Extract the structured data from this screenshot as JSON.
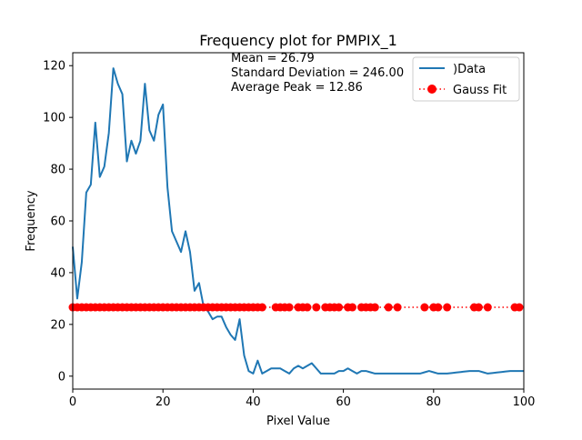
{
  "chart_data": {
    "type": "line",
    "title": "Frequency plot for PMPIX_1",
    "xlabel": "Pixel Value",
    "ylabel": "Frequency",
    "xlim": [
      0,
      100
    ],
    "ylim": [
      -5,
      125
    ],
    "xticks": [
      0,
      20,
      40,
      60,
      80,
      100
    ],
    "yticks": [
      0,
      20,
      40,
      60,
      80,
      100,
      120
    ],
    "grid": false,
    "legend_position": "top-right",
    "annotations": [
      "Mean = 26.79",
      "Standard Deviation = 246.00",
      "Average Peak = 12.86"
    ],
    "series": [
      {
        "name": ")Data",
        "color": "#1f77b4",
        "style": "solid-line",
        "x": [
          0,
          1,
          2,
          3,
          4,
          5,
          6,
          7,
          8,
          9,
          10,
          11,
          12,
          13,
          14,
          15,
          16,
          17,
          18,
          19,
          20,
          21,
          22,
          23,
          24,
          25,
          26,
          27,
          28,
          29,
          30,
          31,
          32,
          33,
          34,
          35,
          36,
          37,
          38,
          39,
          40,
          41,
          42,
          43,
          44,
          45,
          46,
          47,
          48,
          49,
          50,
          51,
          52,
          53,
          54,
          55,
          56,
          57,
          58,
          59,
          60,
          61,
          62,
          63,
          64,
          65,
          66,
          67,
          68,
          69,
          70,
          71,
          72,
          73,
          74,
          75,
          76,
          77,
          78,
          79,
          80,
          81,
          82,
          83,
          84,
          85,
          86,
          87,
          88,
          89,
          90,
          91,
          92,
          93,
          94,
          95,
          96,
          97,
          98,
          99,
          100
        ],
        "y": [
          50,
          30,
          44,
          71,
          74,
          98,
          77,
          81,
          94,
          119,
          113,
          109,
          83,
          91,
          86,
          91,
          113,
          95,
          91,
          101,
          105,
          73,
          56,
          52,
          48,
          56,
          48,
          33,
          36,
          27,
          25,
          22,
          23,
          23,
          19,
          16,
          14,
          22,
          8,
          2,
          1,
          6,
          1,
          2,
          3,
          3,
          3,
          2,
          1,
          3,
          4,
          3,
          4,
          5,
          3,
          1,
          1,
          1,
          1,
          2,
          2,
          3,
          2,
          1,
          2,
          2,
          1.5,
          1,
          1,
          1,
          1,
          1,
          1,
          1,
          1,
          1,
          1,
          1,
          1.5,
          2,
          1.5,
          1,
          1,
          1,
          1.2,
          1.4,
          1.6,
          1.8,
          2,
          2,
          2,
          1.5,
          1,
          1.2,
          1.4,
          1.6,
          1.8,
          2,
          2,
          2,
          2
        ]
      },
      {
        "name": "Gauss Fit",
        "color": "#ff0000",
        "style": "dotted-line-with-circle-markers",
        "constant_y": 26.6,
        "x": [
          0,
          1,
          2,
          3,
          4,
          5,
          6,
          7,
          8,
          9,
          10,
          11,
          12,
          13,
          14,
          15,
          16,
          17,
          18,
          19,
          20,
          21,
          22,
          23,
          24,
          25,
          26,
          27,
          28,
          29,
          30,
          31,
          32,
          33,
          34,
          35,
          36,
          37,
          38,
          39,
          40,
          41,
          42,
          45,
          46,
          47,
          48,
          50,
          51,
          52,
          54,
          56,
          57,
          58,
          59,
          61,
          62,
          64,
          65,
          66,
          67,
          70,
          72,
          78,
          80,
          81,
          83,
          89,
          90,
          92,
          98,
          99
        ]
      }
    ]
  }
}
